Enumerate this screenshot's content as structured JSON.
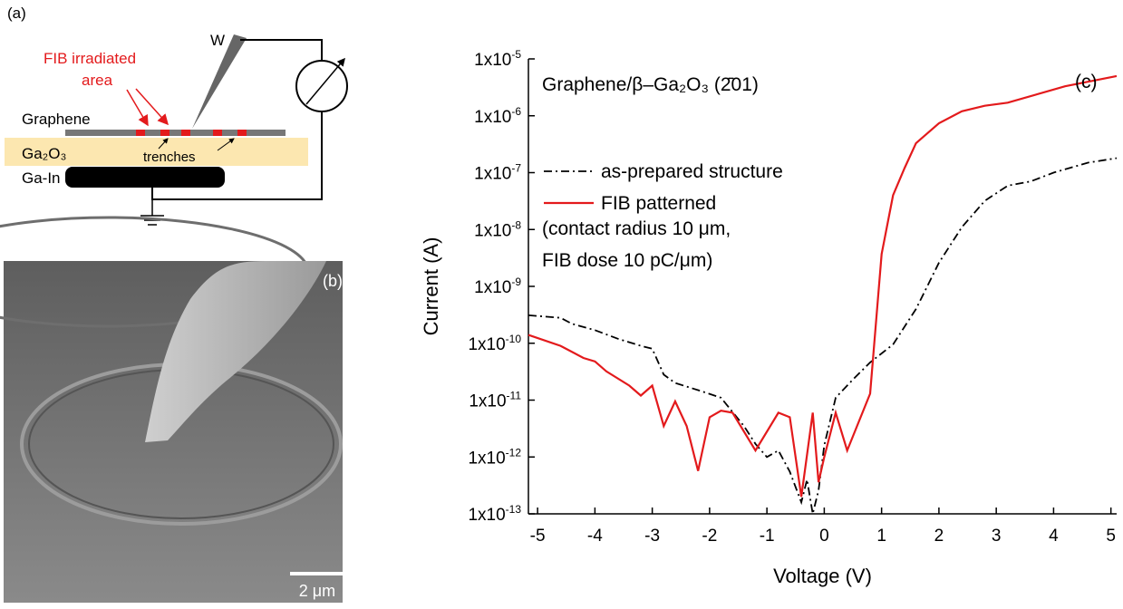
{
  "panel_a": {
    "label": "(a)",
    "tip": "W",
    "irradiated": [
      "FIB irradiated",
      "area"
    ],
    "layers": [
      "Graphene",
      "Ga₂O₃",
      "Ga-In"
    ],
    "trenches": "trenches"
  },
  "panel_b": {
    "label": "(b)",
    "scale_bar": "2 μm"
  },
  "chart_data": {
    "type": "line",
    "panel_label": "(c)",
    "annotations": [
      "Graphene/β–Ga₂O₃ (2̄01)",
      "(contact radius 10 μm,",
      "FIB dose 10 pC/μm)"
    ],
    "x_label": "Voltage (V)",
    "y_label": "Current (A)",
    "log_y": true,
    "xlim": [
      -5.16,
      5.1
    ],
    "xticks": [
      -5,
      -4,
      -3,
      -2,
      -1,
      0,
      1,
      2,
      3,
      4,
      5
    ],
    "ylim": [
      1e-13,
      1e-05
    ],
    "yticks": [
      {
        "value": 1e-13,
        "label": "1x10^-13"
      },
      {
        "value": 1e-12,
        "label": "1x10^-12"
      },
      {
        "value": 1e-11,
        "label": "1x10^-11"
      },
      {
        "value": 1e-10,
        "label": "1x10^-10"
      },
      {
        "value": 1e-09,
        "label": "1x10^-9"
      },
      {
        "value": 1e-08,
        "label": "1x10^-8"
      },
      {
        "value": 1e-07,
        "label": "1x10^-7"
      },
      {
        "value": 1e-06,
        "label": "1x10^-6"
      },
      {
        "value": 1e-05,
        "label": "1x10^-5"
      }
    ],
    "series": [
      {
        "name": "as-prepared structure",
        "color": "#000000",
        "dash": "9,4,2,4",
        "x": [
          -5.16,
          -4.6,
          -4.4,
          -4,
          -3.6,
          -3.2,
          -3,
          -2.8,
          -2.6,
          -2.2,
          -1.8,
          -1.4,
          -1.2,
          -1,
          -0.8,
          -0.6,
          -0.4,
          -0.3,
          -0.2,
          -0.1,
          0,
          0.2,
          0.5,
          0.8,
          1.2,
          1.6,
          2,
          2.4,
          2.8,
          3.2,
          3.6,
          4,
          4.6,
          5.1
        ],
        "values": [
          3.1e-10,
          2.8e-10,
          2.2e-10,
          1.7e-10,
          1.2e-10,
          9e-11,
          8e-11,
          2.8e-11,
          2e-11,
          1.5e-11,
          1.1e-11,
          3.5e-12,
          1.7e-12,
          1e-12,
          1.3e-12,
          5.5e-13,
          1.6e-13,
          4e-13,
          1e-13,
          2.6e-13,
          1.6e-12,
          1.1e-11,
          2.3e-11,
          4.6e-11,
          9.5e-11,
          4e-10,
          2.6e-09,
          1.1e-08,
          3.2e-08,
          5.9e-08,
          7e-08,
          1e-07,
          1.5e-07,
          1.8e-07
        ]
      },
      {
        "name": "FIB patterned",
        "color": "#e31a1c",
        "dash": "none",
        "x": [
          -5.16,
          -4.6,
          -4.2,
          -4,
          -3.8,
          -3.4,
          -3.2,
          -3,
          -2.8,
          -2.6,
          -2.4,
          -2.2,
          -2,
          -1.8,
          -1.6,
          -1.2,
          -0.8,
          -0.6,
          -0.4,
          -0.2,
          -0.1,
          0,
          0.2,
          0.4,
          0.8,
          1,
          1.2,
          1.4,
          1.6,
          2,
          2.4,
          2.8,
          3.2,
          4.2,
          5.1
        ],
        "values": [
          1.4e-10,
          9e-11,
          5.5e-11,
          4.8e-11,
          3.2e-11,
          1.8e-11,
          1.2e-11,
          1.8e-11,
          3.5e-12,
          9.5e-12,
          3.5e-12,
          5.7e-13,
          5e-12,
          6.5e-12,
          6e-12,
          1.3e-12,
          6e-12,
          5e-12,
          2e-13,
          6e-12,
          3.6e-13,
          1e-12,
          6e-12,
          1.3e-12,
          1.3e-11,
          3.7e-09,
          4e-08,
          1.2e-07,
          3.3e-07,
          7.4e-07,
          1.2e-06,
          1.5e-06,
          1.7e-06,
          3.3e-06,
          5e-06
        ]
      }
    ]
  }
}
